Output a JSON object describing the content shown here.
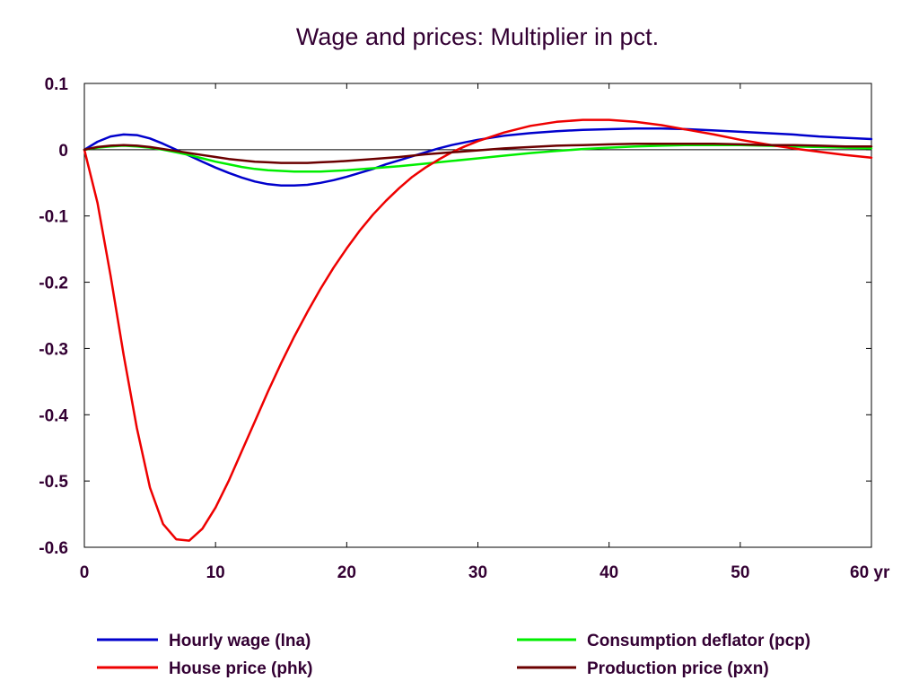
{
  "chart_data": {
    "type": "line",
    "title": "Wage and prices: Multiplier in pct.",
    "x_unit_label": "yr",
    "xlim": [
      0,
      60
    ],
    "ylim": [
      -0.6,
      0.1
    ],
    "x_ticks": [
      0,
      10,
      20,
      30,
      40,
      50,
      60
    ],
    "x_tick_labels": [
      "0",
      "10",
      "20",
      "30",
      "40",
      "50",
      "60 yr"
    ],
    "y_ticks": [
      0.1,
      0,
      -0.1,
      -0.2,
      -0.3,
      -0.4,
      -0.5,
      -0.6
    ],
    "y_tick_labels": [
      "0.1",
      "0",
      "-0.1",
      "-0.2",
      "-0.3",
      "-0.4",
      "-0.5",
      "-0.6"
    ],
    "zero_line": true,
    "grid": false,
    "legend_position": "bottom",
    "series": [
      {
        "name": "Hourly wage (lna)",
        "color": "#0000cc",
        "points": [
          [
            0,
            0
          ],
          [
            1,
            0.012
          ],
          [
            2,
            0.02
          ],
          [
            3,
            0.023
          ],
          [
            4,
            0.022
          ],
          [
            5,
            0.017
          ],
          [
            6,
            0.009
          ],
          [
            7,
            0.0
          ],
          [
            8,
            -0.009
          ],
          [
            9,
            -0.018
          ],
          [
            10,
            -0.027
          ],
          [
            11,
            -0.035
          ],
          [
            12,
            -0.042
          ],
          [
            13,
            -0.048
          ],
          [
            14,
            -0.052
          ],
          [
            15,
            -0.054
          ],
          [
            16,
            -0.054
          ],
          [
            17,
            -0.053
          ],
          [
            18,
            -0.05
          ],
          [
            19,
            -0.046
          ],
          [
            20,
            -0.041
          ],
          [
            21,
            -0.035
          ],
          [
            22,
            -0.029
          ],
          [
            23,
            -0.022
          ],
          [
            24,
            -0.016
          ],
          [
            25,
            -0.01
          ],
          [
            26,
            -0.004
          ],
          [
            27,
            0.002
          ],
          [
            28,
            0.007
          ],
          [
            29,
            0.011
          ],
          [
            30,
            0.015
          ],
          [
            32,
            0.021
          ],
          [
            34,
            0.025
          ],
          [
            36,
            0.028
          ],
          [
            38,
            0.03
          ],
          [
            40,
            0.031
          ],
          [
            42,
            0.032
          ],
          [
            44,
            0.032
          ],
          [
            46,
            0.031
          ],
          [
            48,
            0.029
          ],
          [
            50,
            0.027
          ],
          [
            52,
            0.025
          ],
          [
            54,
            0.023
          ],
          [
            56,
            0.02
          ],
          [
            58,
            0.018
          ],
          [
            60,
            0.016
          ]
        ]
      },
      {
        "name": "Consumption deflator (pcp)",
        "color": "#00ee00",
        "points": [
          [
            0,
            0
          ],
          [
            1,
            0.003
          ],
          [
            2,
            0.005
          ],
          [
            3,
            0.006
          ],
          [
            4,
            0.005
          ],
          [
            5,
            0.003
          ],
          [
            6,
            0.0
          ],
          [
            7,
            -0.004
          ],
          [
            8,
            -0.008
          ],
          [
            9,
            -0.013
          ],
          [
            10,
            -0.018
          ],
          [
            11,
            -0.022
          ],
          [
            12,
            -0.026
          ],
          [
            13,
            -0.029
          ],
          [
            14,
            -0.031
          ],
          [
            15,
            -0.032
          ],
          [
            16,
            -0.033
          ],
          [
            17,
            -0.033
          ],
          [
            18,
            -0.033
          ],
          [
            19,
            -0.032
          ],
          [
            20,
            -0.031
          ],
          [
            22,
            -0.028
          ],
          [
            24,
            -0.025
          ],
          [
            26,
            -0.021
          ],
          [
            28,
            -0.017
          ],
          [
            30,
            -0.013
          ],
          [
            32,
            -0.009
          ],
          [
            34,
            -0.005
          ],
          [
            36,
            -0.002
          ],
          [
            38,
            0.001
          ],
          [
            40,
            0.003
          ],
          [
            42,
            0.005
          ],
          [
            44,
            0.006
          ],
          [
            46,
            0.007
          ],
          [
            48,
            0.007
          ],
          [
            50,
            0.007
          ],
          [
            52,
            0.006
          ],
          [
            54,
            0.005
          ],
          [
            56,
            0.004
          ],
          [
            58,
            0.003
          ],
          [
            60,
            0.002
          ]
        ]
      },
      {
        "name": "House price (phk)",
        "color": "#ee0000",
        "points": [
          [
            0,
            0
          ],
          [
            1,
            -0.08
          ],
          [
            2,
            -0.19
          ],
          [
            3,
            -0.31
          ],
          [
            4,
            -0.42
          ],
          [
            5,
            -0.51
          ],
          [
            6,
            -0.565
          ],
          [
            7,
            -0.588
          ],
          [
            8,
            -0.59
          ],
          [
            9,
            -0.572
          ],
          [
            10,
            -0.54
          ],
          [
            11,
            -0.5
          ],
          [
            12,
            -0.455
          ],
          [
            13,
            -0.41
          ],
          [
            14,
            -0.365
          ],
          [
            15,
            -0.322
          ],
          [
            16,
            -0.282
          ],
          [
            17,
            -0.245
          ],
          [
            18,
            -0.21
          ],
          [
            19,
            -0.178
          ],
          [
            20,
            -0.149
          ],
          [
            21,
            -0.122
          ],
          [
            22,
            -0.098
          ],
          [
            23,
            -0.077
          ],
          [
            24,
            -0.058
          ],
          [
            25,
            -0.041
          ],
          [
            26,
            -0.027
          ],
          [
            27,
            -0.015
          ],
          [
            28,
            -0.004
          ],
          [
            29,
            0.005
          ],
          [
            30,
            0.013
          ],
          [
            32,
            0.026
          ],
          [
            34,
            0.036
          ],
          [
            36,
            0.042
          ],
          [
            38,
            0.045
          ],
          [
            40,
            0.045
          ],
          [
            42,
            0.042
          ],
          [
            44,
            0.037
          ],
          [
            46,
            0.03
          ],
          [
            48,
            0.023
          ],
          [
            50,
            0.015
          ],
          [
            52,
            0.008
          ],
          [
            54,
            0.002
          ],
          [
            56,
            -0.003
          ],
          [
            58,
            -0.008
          ],
          [
            60,
            -0.012
          ]
        ]
      },
      {
        "name": "Production price (pxn)",
        "color": "#6b0000",
        "points": [
          [
            0,
            0
          ],
          [
            1,
            0.004
          ],
          [
            2,
            0.006
          ],
          [
            3,
            0.007
          ],
          [
            4,
            0.006
          ],
          [
            5,
            0.004
          ],
          [
            6,
            0.001
          ],
          [
            7,
            -0.002
          ],
          [
            8,
            -0.005
          ],
          [
            9,
            -0.008
          ],
          [
            10,
            -0.011
          ],
          [
            11,
            -0.014
          ],
          [
            12,
            -0.016
          ],
          [
            13,
            -0.018
          ],
          [
            14,
            -0.019
          ],
          [
            15,
            -0.02
          ],
          [
            16,
            -0.02
          ],
          [
            17,
            -0.02
          ],
          [
            18,
            -0.019
          ],
          [
            19,
            -0.018
          ],
          [
            20,
            -0.017
          ],
          [
            22,
            -0.014
          ],
          [
            24,
            -0.011
          ],
          [
            26,
            -0.007
          ],
          [
            28,
            -0.004
          ],
          [
            30,
            -0.001
          ],
          [
            32,
            0.002
          ],
          [
            34,
            0.004
          ],
          [
            36,
            0.006
          ],
          [
            38,
            0.007
          ],
          [
            40,
            0.008
          ],
          [
            42,
            0.009
          ],
          [
            44,
            0.009
          ],
          [
            46,
            0.009
          ],
          [
            48,
            0.009
          ],
          [
            50,
            0.008
          ],
          [
            52,
            0.007
          ],
          [
            54,
            0.007
          ],
          [
            56,
            0.006
          ],
          [
            58,
            0.005
          ],
          [
            60,
            0.005
          ]
        ]
      }
    ]
  }
}
